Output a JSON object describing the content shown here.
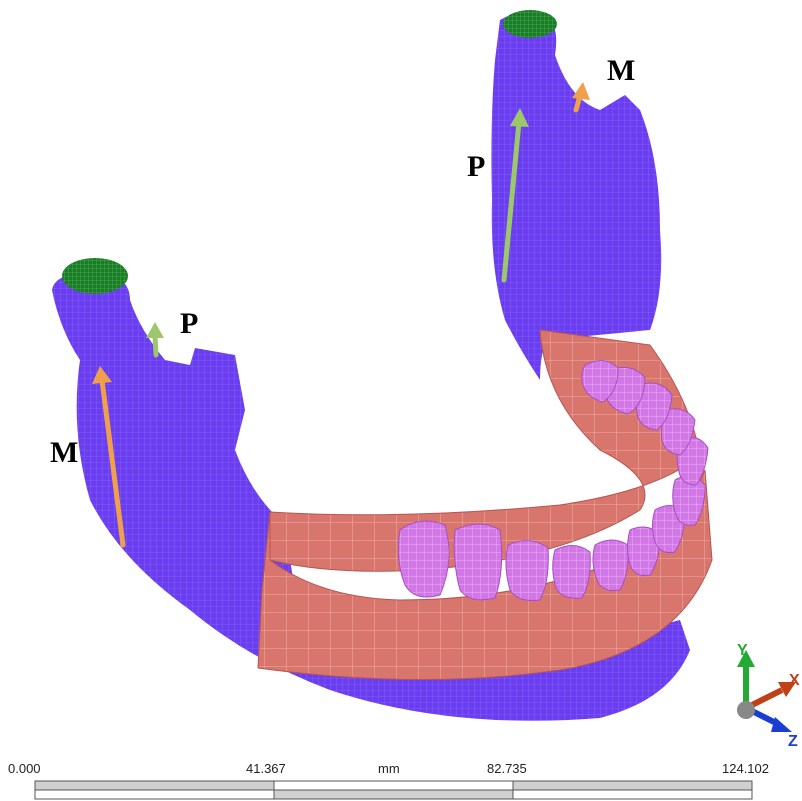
{
  "annotations": {
    "left_m": "M",
    "left_p": "P",
    "right_p": "P",
    "right_m": "M"
  },
  "scale_bar": {
    "ticks": [
      "0.000",
      "41.367",
      "82.735",
      "124.102"
    ],
    "unit": "mm"
  },
  "triad": {
    "y": "Y",
    "x": "X",
    "z": "Z"
  }
}
